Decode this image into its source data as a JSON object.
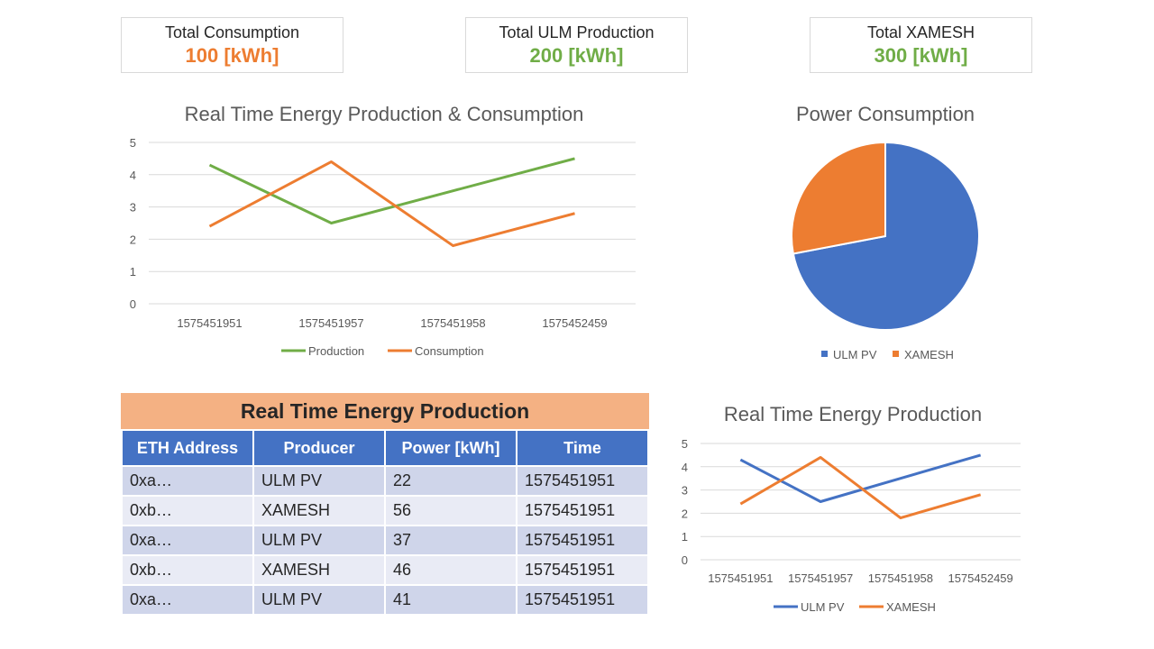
{
  "kpis": [
    {
      "label": "Total Consumption",
      "value": "100 [kWh]",
      "color": "#ed7d31"
    },
    {
      "label": "Total ULM Production",
      "value": "200 [kWh]",
      "color": "#70ad47"
    },
    {
      "label": "Total XAMESH",
      "value": "300 [kWh]",
      "color": "#70ad47"
    }
  ],
  "table": {
    "title": "Real Time Energy Production",
    "headers": [
      "ETH Address",
      "Producer",
      "Power [kWh]",
      "Time"
    ],
    "rows": [
      [
        "0xa…",
        "ULM PV",
        "22",
        "1575451951"
      ],
      [
        "0xb…",
        "XAMESH",
        "56",
        "1575451951"
      ],
      [
        "0xa…",
        "ULM PV",
        "37",
        "1575451951"
      ],
      [
        "0xb…",
        "XAMESH",
        "46",
        "1575451951"
      ],
      [
        "0xa…",
        "ULM PV",
        "41",
        "1575451951"
      ]
    ]
  },
  "chart_data": [
    {
      "type": "line",
      "title": "Real Time Energy Production & Consumption",
      "categories": [
        "1575451951",
        "1575451957",
        "1575451958",
        "1575452459"
      ],
      "series": [
        {
          "name": "Production",
          "values": [
            4.3,
            2.5,
            3.5,
            4.5
          ],
          "color": "#70ad47"
        },
        {
          "name": "Consumption",
          "values": [
            2.4,
            4.4,
            1.8,
            2.8
          ],
          "color": "#ed7d31"
        }
      ],
      "ylim": [
        0,
        5
      ],
      "yticks": [
        0,
        1,
        2,
        3,
        4,
        5
      ],
      "grid": true,
      "legend": "bottom"
    },
    {
      "type": "pie",
      "title": "Power Consumption",
      "categories": [
        "ULM PV",
        "XAMESH"
      ],
      "values": [
        72,
        28
      ],
      "colors": [
        "#4472c4",
        "#ed7d31"
      ],
      "legend": "bottom"
    },
    {
      "type": "line",
      "title": "Real Time Energy Production",
      "categories": [
        "1575451951",
        "1575451957",
        "1575451958",
        "1575452459"
      ],
      "series": [
        {
          "name": "ULM PV",
          "values": [
            4.3,
            2.5,
            3.5,
            4.5
          ],
          "color": "#4472c4"
        },
        {
          "name": "XAMESH",
          "values": [
            2.4,
            4.4,
            1.8,
            2.8
          ],
          "color": "#ed7d31"
        }
      ],
      "ylim": [
        0,
        5
      ],
      "yticks": [
        0,
        1,
        2,
        3,
        4,
        5
      ],
      "grid": true,
      "legend": "bottom"
    }
  ]
}
